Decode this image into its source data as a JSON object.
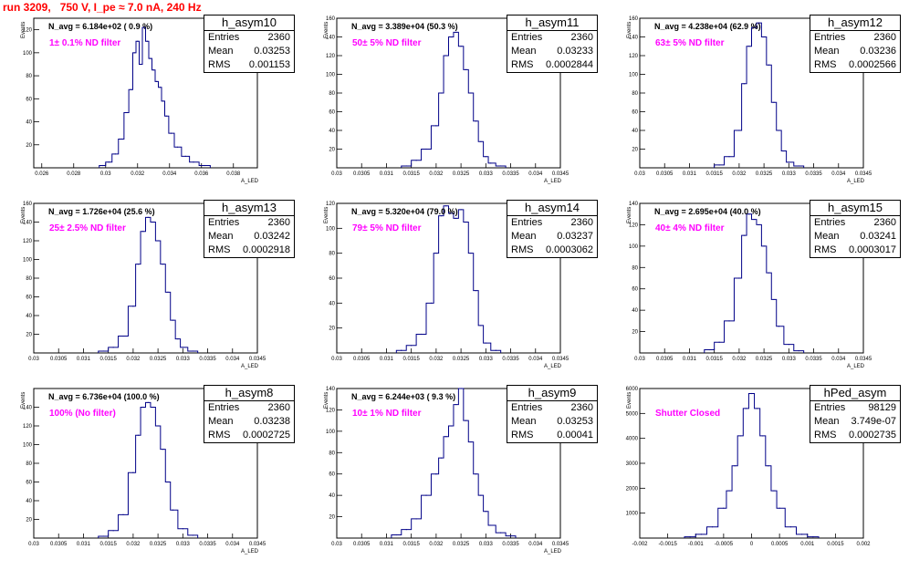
{
  "page": {
    "title": "run 3209,   750 V, I_pe ≈ 7.0 nA, 240 Hz"
  },
  "chart_data": [
    {
      "type": "bar",
      "name": "h_asym10",
      "navg_text": "N_avg = 6.184e+02 ( 0.9 %)",
      "filter_text": "1± 0.1% ND filter",
      "stats": [
        [
          "Entries",
          "2360"
        ],
        [
          "Mean",
          "0.03253"
        ],
        [
          "RMS",
          "0.001153"
        ]
      ],
      "ylabel": "Events",
      "xlabel": "A_LED",
      "xlim": [
        0.0255,
        0.0395
      ],
      "ylim": [
        0,
        130
      ],
      "xticks": [
        0.026,
        0.028,
        0.03,
        0.032,
        0.034,
        0.036,
        0.038
      ],
      "xtick_labels": [
        "0.026",
        "0.028",
        "0.03",
        "0.032",
        "0.034",
        "0.036",
        "0.038"
      ],
      "yticks": [
        20,
        40,
        60,
        80,
        100,
        120
      ],
      "ytick_labels": [
        "20",
        "40",
        "60",
        "80",
        "100",
        "120"
      ],
      "x": [
        0.0298,
        0.0302,
        0.0306,
        0.031,
        0.0313,
        0.0316,
        0.0318,
        0.032,
        0.0322,
        0.0324,
        0.0326,
        0.0328,
        0.033,
        0.0332,
        0.0334,
        0.0336,
        0.0338,
        0.0341,
        0.0345,
        0.035,
        0.0355,
        0.0362
      ],
      "values": [
        2,
        5,
        12,
        25,
        48,
        68,
        100,
        110,
        90,
        122,
        110,
        95,
        85,
        75,
        70,
        58,
        45,
        30,
        18,
        10,
        5,
        2
      ]
    },
    {
      "type": "bar",
      "name": "h_asym11",
      "navg_text": "N_avg = 3.389e+04 (50.3 %)",
      "filter_text": "50± 5% ND filter",
      "stats": [
        [
          "Entries",
          "2360"
        ],
        [
          "Mean",
          "0.03233"
        ],
        [
          "RMS",
          "0.0002844"
        ]
      ],
      "ylabel": "Events",
      "xlabel": "A_LED",
      "xlim": [
        0.03,
        0.0345
      ],
      "ylim": [
        0,
        160
      ],
      "xticks": [
        0.03,
        0.0305,
        0.031,
        0.0315,
        0.032,
        0.0325,
        0.033,
        0.0335,
        0.034,
        0.0345
      ],
      "xtick_labels": [
        "0.03",
        "0.0305",
        "0.031",
        "0.0315",
        "0.032",
        "0.0325",
        "0.033",
        "0.0335",
        "0.034",
        "0.0345"
      ],
      "yticks": [
        20,
        40,
        60,
        80,
        100,
        120,
        140,
        160
      ],
      "ytick_labels": [
        "20",
        "40",
        "60",
        "80",
        "100",
        "120",
        "140",
        "160"
      ],
      "x": [
        0.0314,
        0.0316,
        0.0318,
        0.032,
        0.0321,
        0.0322,
        0.0323,
        0.0324,
        0.0325,
        0.0326,
        0.0327,
        0.0328,
        0.0329,
        0.033,
        0.0331,
        0.0333
      ],
      "values": [
        2,
        8,
        20,
        45,
        80,
        120,
        140,
        145,
        130,
        105,
        80,
        50,
        28,
        12,
        5,
        2
      ]
    },
    {
      "type": "bar",
      "name": "h_asym12",
      "navg_text": "N_avg = 4.238e+04 (62.9 %)",
      "filter_text": "63± 5% ND filter",
      "stats": [
        [
          "Entries",
          "2360"
        ],
        [
          "Mean",
          "0.03236"
        ],
        [
          "RMS",
          "0.0002566"
        ]
      ],
      "ylabel": "Events",
      "xlabel": "A_LED",
      "xlim": [
        0.03,
        0.0345
      ],
      "ylim": [
        0,
        160
      ],
      "xticks": [
        0.03,
        0.0305,
        0.031,
        0.0315,
        0.032,
        0.0325,
        0.033,
        0.0335,
        0.034,
        0.0345
      ],
      "xtick_labels": [
        "0.03",
        "0.0305",
        "0.031",
        "0.0315",
        "0.032",
        "0.0325",
        "0.033",
        "0.0335",
        "0.034",
        "0.0345"
      ],
      "yticks": [
        20,
        40,
        60,
        80,
        100,
        120,
        140,
        160
      ],
      "ytick_labels": [
        "20",
        "40",
        "60",
        "80",
        "100",
        "120",
        "140",
        "160"
      ],
      "x": [
        0.0316,
        0.0318,
        0.032,
        0.0321,
        0.0322,
        0.0323,
        0.0324,
        0.0325,
        0.0326,
        0.0327,
        0.0328,
        0.0329,
        0.033,
        0.0332
      ],
      "values": [
        3,
        12,
        40,
        90,
        130,
        150,
        155,
        140,
        110,
        70,
        40,
        18,
        6,
        2
      ]
    },
    {
      "type": "bar",
      "name": "h_asym13",
      "navg_text": "N_avg = 1.726e+04 (25.6 %)",
      "filter_text": "25± 2.5% ND filter",
      "stats": [
        [
          "Entries",
          "2360"
        ],
        [
          "Mean",
          "0.03242"
        ],
        [
          "RMS",
          "0.0002918"
        ]
      ],
      "ylabel": "Events",
      "xlabel": "A_LED",
      "xlim": [
        0.03,
        0.0345
      ],
      "ylim": [
        0,
        160
      ],
      "xticks": [
        0.03,
        0.0305,
        0.031,
        0.0315,
        0.032,
        0.0325,
        0.033,
        0.0335,
        0.034,
        0.0345
      ],
      "xtick_labels": [
        "0.03",
        "0.0305",
        "0.031",
        "0.0315",
        "0.032",
        "0.0325",
        "0.033",
        "0.0335",
        "0.034",
        "0.0345"
      ],
      "yticks": [
        20,
        40,
        60,
        80,
        100,
        120,
        140,
        160
      ],
      "ytick_labels": [
        "20",
        "40",
        "60",
        "80",
        "100",
        "120",
        "140",
        "160"
      ],
      "x": [
        0.0314,
        0.0316,
        0.0318,
        0.032,
        0.0321,
        0.0322,
        0.0323,
        0.0324,
        0.0325,
        0.0326,
        0.0327,
        0.0328,
        0.0329,
        0.033,
        0.0332
      ],
      "values": [
        2,
        6,
        18,
        50,
        95,
        130,
        145,
        140,
        120,
        95,
        65,
        35,
        15,
        6,
        2
      ]
    },
    {
      "type": "bar",
      "name": "h_asym14",
      "navg_text": "N_avg = 5.320e+04 (79.0 %)",
      "filter_text": "79± 5% ND filter",
      "stats": [
        [
          "Entries",
          "2360"
        ],
        [
          "Mean",
          "0.03237"
        ],
        [
          "RMS",
          "0.0003062"
        ]
      ],
      "ylabel": "Events",
      "xlabel": "A_LED",
      "xlim": [
        0.03,
        0.0345
      ],
      "ylim": [
        0,
        120
      ],
      "xticks": [
        0.03,
        0.0305,
        0.031,
        0.0315,
        0.032,
        0.0325,
        0.033,
        0.0335,
        0.034,
        0.0345
      ],
      "xtick_labels": [
        "0.03",
        "0.0305",
        "0.031",
        "0.0315",
        "0.032",
        "0.0325",
        "0.033",
        "0.0335",
        "0.034",
        "0.0345"
      ],
      "yticks": [
        20,
        40,
        60,
        80,
        100,
        120
      ],
      "ytick_labels": [
        "20",
        "40",
        "60",
        "80",
        "100",
        "120"
      ],
      "x": [
        0.0313,
        0.0315,
        0.0317,
        0.0319,
        0.032,
        0.0321,
        0.0322,
        0.0323,
        0.0324,
        0.0325,
        0.0326,
        0.0327,
        0.0328,
        0.0329,
        0.033,
        0.0332
      ],
      "values": [
        2,
        6,
        15,
        40,
        80,
        110,
        118,
        112,
        108,
        115,
        105,
        80,
        50,
        22,
        8,
        2
      ]
    },
    {
      "type": "bar",
      "name": "h_asym15",
      "navg_text": "N_avg = 2.695e+04 (40.0 %)",
      "filter_text": "40± 4% ND filter",
      "stats": [
        [
          "Entries",
          "2360"
        ],
        [
          "Mean",
          "0.03241"
        ],
        [
          "RMS",
          "0.0003017"
        ]
      ],
      "ylabel": "Events",
      "xlabel": "A_LED",
      "xlim": [
        0.03,
        0.0345
      ],
      "ylim": [
        0,
        140
      ],
      "xticks": [
        0.03,
        0.0305,
        0.031,
        0.0315,
        0.032,
        0.0325,
        0.033,
        0.0335,
        0.034,
        0.0345
      ],
      "xtick_labels": [
        "0.03",
        "0.0305",
        "0.031",
        "0.0315",
        "0.032",
        "0.0325",
        "0.033",
        "0.0335",
        "0.034",
        "0.0345"
      ],
      "yticks": [
        20,
        40,
        60,
        80,
        100,
        120,
        140
      ],
      "ytick_labels": [
        "20",
        "40",
        "60",
        "80",
        "100",
        "120",
        "140"
      ],
      "x": [
        0.0314,
        0.0316,
        0.0318,
        0.032,
        0.0321,
        0.0322,
        0.0323,
        0.0324,
        0.0325,
        0.0326,
        0.0327,
        0.0328,
        0.033,
        0.0332
      ],
      "values": [
        3,
        10,
        30,
        70,
        110,
        130,
        125,
        120,
        100,
        75,
        50,
        25,
        8,
        2
      ]
    },
    {
      "type": "bar",
      "name": "h_asym8",
      "navg_text": "N_avg = 6.736e+04 (100.0 %)",
      "filter_text": "100% (No filter)",
      "stats": [
        [
          "Entries",
          "2360"
        ],
        [
          "Mean",
          "0.03238"
        ],
        [
          "RMS",
          "0.0002725"
        ]
      ],
      "ylabel": "Events",
      "xlabel": "A_LED",
      "xlim": [
        0.03,
        0.0345
      ],
      "ylim": [
        0,
        160
      ],
      "xticks": [
        0.03,
        0.0305,
        0.031,
        0.0315,
        0.032,
        0.0325,
        0.033,
        0.0335,
        0.034,
        0.0345
      ],
      "xtick_labels": [
        "0.03",
        "0.0305",
        "0.031",
        "0.0315",
        "0.032",
        "0.0325",
        "0.033",
        "0.0335",
        "0.034",
        "0.0345"
      ],
      "yticks": [
        20,
        40,
        60,
        80,
        100,
        120,
        140
      ],
      "ytick_labels": [
        "20",
        "40",
        "60",
        "80",
        "100",
        "120",
        "140"
      ],
      "x": [
        0.0314,
        0.0316,
        0.0318,
        0.032,
        0.0321,
        0.0322,
        0.0323,
        0.0324,
        0.0325,
        0.0326,
        0.0327,
        0.0328,
        0.033,
        0.0332
      ],
      "values": [
        2,
        8,
        25,
        70,
        110,
        140,
        145,
        140,
        120,
        95,
        60,
        30,
        10,
        3
      ]
    },
    {
      "type": "bar",
      "name": "h_asym9",
      "navg_text": "N_avg = 6.244e+03 ( 9.3 %)",
      "filter_text": "10± 1% ND filter",
      "stats": [
        [
          "Entries",
          "2360"
        ],
        [
          "Mean",
          "0.03253"
        ],
        [
          "RMS",
          "0.00041"
        ]
      ],
      "ylabel": "Events",
      "xlabel": "A_LED",
      "xlim": [
        0.03,
        0.0345
      ],
      "ylim": [
        0,
        140
      ],
      "xticks": [
        0.03,
        0.0305,
        0.031,
        0.0315,
        0.032,
        0.0325,
        0.033,
        0.0335,
        0.034,
        0.0345
      ],
      "xtick_labels": [
        "0.03",
        "0.0305",
        "0.031",
        "0.0315",
        "0.032",
        "0.0325",
        "0.033",
        "0.0335",
        "0.034",
        "0.0345"
      ],
      "yticks": [
        20,
        40,
        60,
        80,
        100,
        120,
        140
      ],
      "ytick_labels": [
        "20",
        "40",
        "60",
        "80",
        "100",
        "120",
        "140"
      ],
      "x": [
        0.0312,
        0.0314,
        0.0316,
        0.0318,
        0.032,
        0.0321,
        0.0322,
        0.0323,
        0.0324,
        0.0325,
        0.0326,
        0.0327,
        0.0328,
        0.0329,
        0.033,
        0.0331,
        0.0333,
        0.0335
      ],
      "values": [
        3,
        8,
        18,
        40,
        60,
        75,
        95,
        105,
        125,
        140,
        110,
        90,
        60,
        40,
        25,
        12,
        5,
        2
      ]
    },
    {
      "type": "bar",
      "name": "hPed_asym",
      "navg_text": "",
      "filter_text": "Shutter Closed",
      "stats": [
        [
          "Entries",
          "98129"
        ],
        [
          "Mean",
          "3.749e-07"
        ],
        [
          "RMS",
          "0.0002735"
        ]
      ],
      "ylabel": "Events",
      "xlabel": "",
      "xlim": [
        -0.002,
        0.002
      ],
      "ylim": [
        0,
        6000
      ],
      "xticks": [
        -0.002,
        -0.0015,
        -0.001,
        -0.0005,
        0,
        0.0005,
        0.001,
        0.0015,
        0.002
      ],
      "xtick_labels": [
        "-0.002",
        "-0.0015",
        "-0.001",
        "-0.0005",
        "0",
        "0.0005",
        "0.001",
        "0.0015",
        "0.002"
      ],
      "yticks": [
        1000,
        2000,
        3000,
        4000,
        5000,
        6000
      ],
      "ytick_labels": [
        "1000",
        "2000",
        "3000",
        "4000",
        "5000",
        "6000"
      ],
      "x": [
        -0.0011,
        -0.0009,
        -0.0007,
        -0.0005,
        -0.0004,
        -0.0003,
        -0.0002,
        -0.0001,
        0,
        0.0001,
        0.0002,
        0.0003,
        0.0004,
        0.0005,
        0.0007,
        0.0009,
        0.0011
      ],
      "values": [
        50,
        150,
        450,
        1200,
        1900,
        2900,
        4100,
        5200,
        5800,
        5200,
        4100,
        2900,
        1900,
        1200,
        450,
        150,
        50
      ]
    }
  ]
}
